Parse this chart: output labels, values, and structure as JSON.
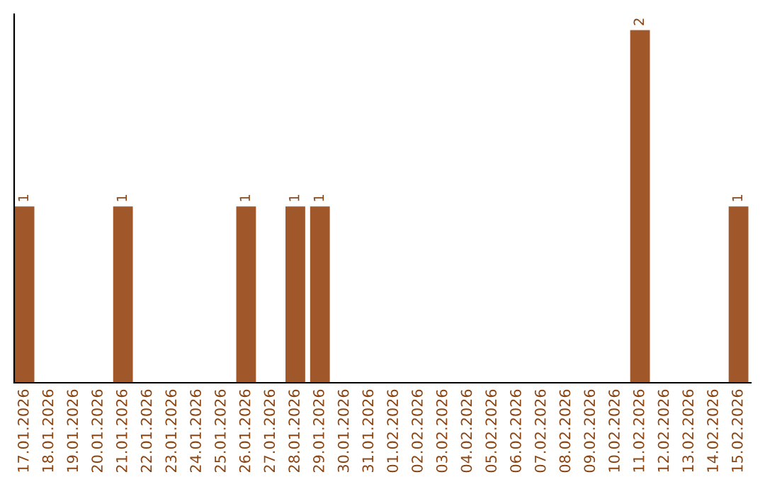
{
  "chart_data": {
    "type": "bar",
    "categories": [
      "17.01.2026",
      "18.01.2026",
      "19.01.2026",
      "20.01.2026",
      "21.01.2026",
      "22.01.2026",
      "23.01.2026",
      "24.01.2026",
      "25.01.2026",
      "26.01.2026",
      "27.01.2026",
      "28.01.2026",
      "29.01.2026",
      "30.01.2026",
      "31.01.2026",
      "01.02.2026",
      "02.02.2026",
      "03.02.2026",
      "04.02.2026",
      "05.02.2026",
      "06.02.2026",
      "07.02.2026",
      "08.02.2026",
      "09.02.2026",
      "10.02.2026",
      "11.02.2026",
      "12.02.2026",
      "13.02.2026",
      "14.02.2026",
      "15.02.2026"
    ],
    "values": [
      1,
      0,
      0,
      0,
      1,
      0,
      0,
      0,
      0,
      1,
      0,
      1,
      1,
      0,
      0,
      0,
      0,
      0,
      0,
      0,
      0,
      0,
      0,
      0,
      0,
      2,
      0,
      0,
      0,
      1
    ],
    "value_labels": [
      "1",
      null,
      null,
      null,
      "1",
      null,
      null,
      null,
      null,
      "1",
      null,
      "1",
      "1",
      null,
      null,
      null,
      null,
      null,
      null,
      null,
      null,
      null,
      null,
      null,
      null,
      "2",
      null,
      null,
      null,
      "1"
    ],
    "color": "#a0572a",
    "relative": false,
    "grid": false,
    "legend": false
  }
}
